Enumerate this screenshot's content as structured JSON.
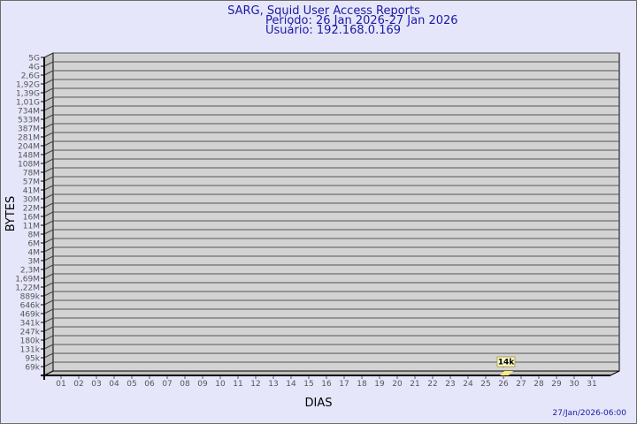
{
  "chart_data": {
    "type": "bar",
    "title": "SARG, Squid User Access Reports",
    "subtitle_lines": [
      "Período: 26 Jan 2026-27 Jan 2026",
      "Usuário: 192.168.0.169"
    ],
    "xlabel": "DIAS",
    "ylabel": "BYTES",
    "categories": [
      "01",
      "02",
      "03",
      "04",
      "05",
      "06",
      "07",
      "08",
      "09",
      "10",
      "11",
      "12",
      "13",
      "14",
      "15",
      "16",
      "17",
      "18",
      "19",
      "20",
      "21",
      "22",
      "23",
      "24",
      "25",
      "26",
      "27",
      "28",
      "29",
      "30",
      "31"
    ],
    "y_tick_labels": [
      "5G",
      "4G",
      "2,6G",
      "1,92G",
      "1,39G",
      "1,01G",
      "734M",
      "533M",
      "387M",
      "281M",
      "204M",
      "148M",
      "108M",
      "78M",
      "57M",
      "41M",
      "30M",
      "22M",
      "16M",
      "11M",
      "8M",
      "6M",
      "4M",
      "3M",
      "2,3M",
      "1,69M",
      "1,22M",
      "889k",
      "646k",
      "469k",
      "341k",
      "247k",
      "180k",
      "131k",
      "95k",
      "69k"
    ],
    "scale": "log",
    "grid": true,
    "series": [
      {
        "values": {
          "26": 14000
        },
        "labels": {
          "26": "14k"
        }
      }
    ],
    "footer_timestamp": "27/Jan/2026-06:00",
    "colors": {
      "background": "#e6e6fa",
      "plot": "#d3d3d3",
      "title": "#1a1aa6",
      "bar": "#ffe680",
      "label_box": "#ffffcc"
    }
  }
}
